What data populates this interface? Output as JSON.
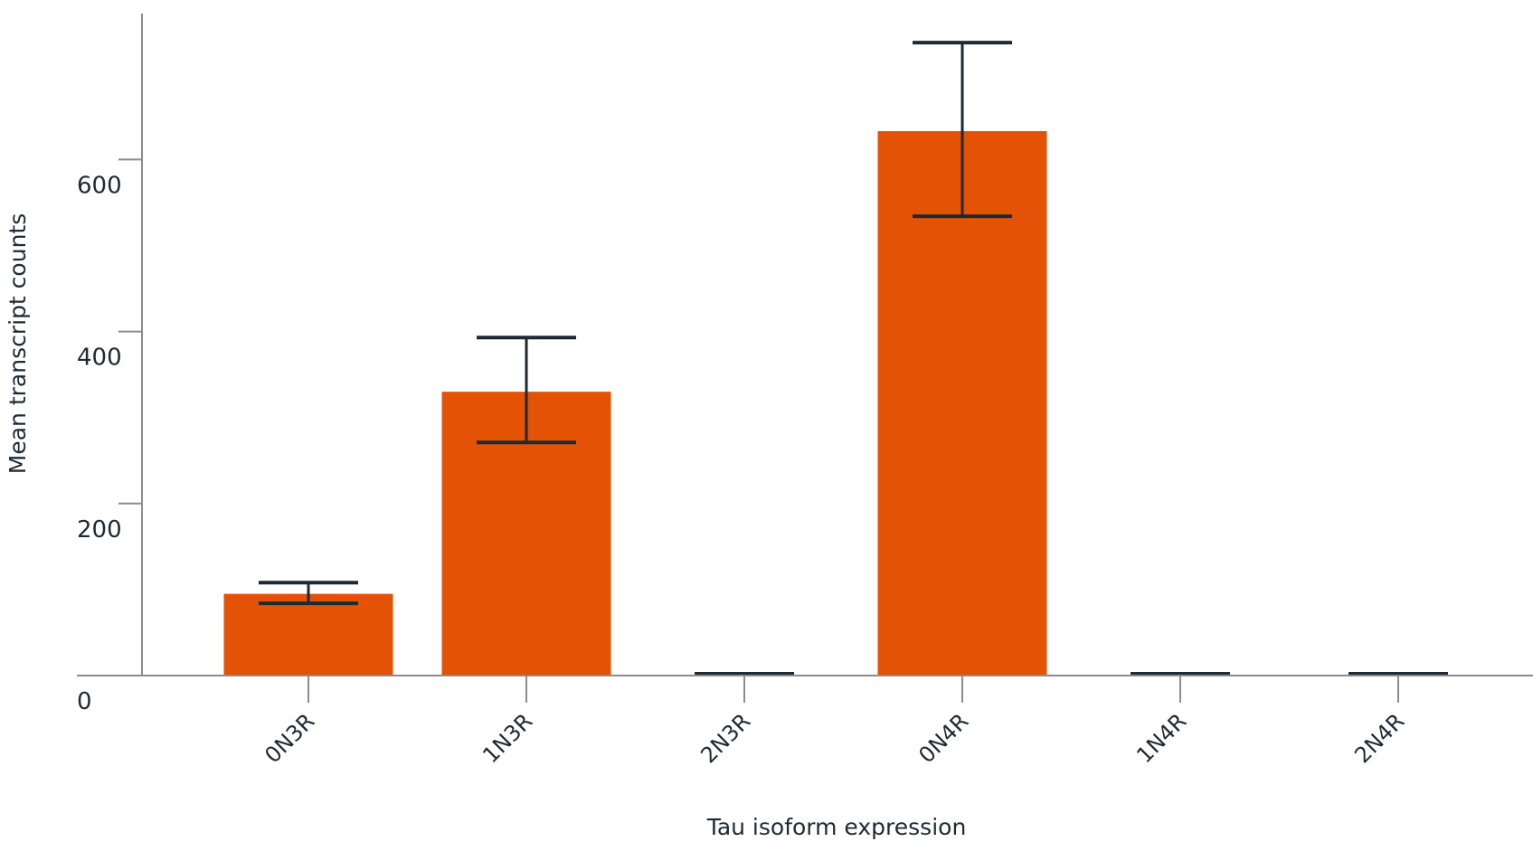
{
  "chart_data": {
    "type": "bar",
    "title": "",
    "xlabel": "Tau isoform expression",
    "ylabel": "Mean transcript counts",
    "categories": [
      "0N3R",
      "1N3R",
      "2N3R",
      "0N4R",
      "1N4R",
      "2N4R"
    ],
    "values": [
      95,
      330,
      0,
      633,
      0,
      0
    ],
    "error_high": [
      108,
      393,
      2,
      736,
      2,
      2
    ],
    "error_low": [
      84,
      271,
      2,
      534,
      2,
      2
    ],
    "ylim": [
      0,
      770
    ],
    "yticks": [
      0,
      200,
      400,
      600
    ],
    "grid": false,
    "bar_color": "#e35205",
    "errorbar_color": "#1e2a33",
    "axis_color": "#8c8c8c"
  }
}
